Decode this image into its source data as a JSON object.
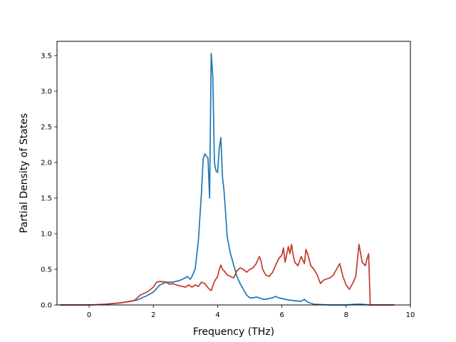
{
  "chart_data": {
    "type": "line",
    "title": "",
    "xlabel": "Frequency (THz)",
    "ylabel": "Partial Density of States",
    "xlim": [
      -1.0,
      10.0
    ],
    "ylim": [
      0.0,
      3.7
    ],
    "xticks": [
      0,
      2,
      4,
      6,
      8,
      10
    ],
    "yticks": [
      0.0,
      0.5,
      1.0,
      1.5,
      2.0,
      2.5,
      3.0,
      3.5
    ],
    "grid": false,
    "legend": "none",
    "series": [
      {
        "color": "#1f77b4",
        "x": [
          -0.9,
          0.0,
          0.5,
          1.0,
          1.5,
          1.8,
          2.0,
          2.2,
          2.4,
          2.6,
          2.8,
          3.0,
          3.05,
          3.15,
          3.2,
          3.3,
          3.4,
          3.5,
          3.55,
          3.6,
          3.7,
          3.75,
          3.8,
          3.85,
          3.9,
          3.95,
          4.0,
          4.05,
          4.1,
          4.15,
          4.2,
          4.3,
          4.4,
          4.5,
          4.6,
          4.7,
          4.8,
          4.9,
          5.0,
          5.1,
          5.2,
          5.3,
          5.4,
          5.5,
          5.6,
          5.7,
          5.8,
          5.9,
          6.0,
          6.2,
          6.4,
          6.6,
          6.7,
          6.8,
          7.0,
          7.5,
          8.0,
          8.3,
          8.5,
          8.7,
          9.0,
          9.5
        ],
        "y": [
          0.0,
          0.0,
          0.01,
          0.03,
          0.07,
          0.13,
          0.18,
          0.28,
          0.32,
          0.32,
          0.34,
          0.38,
          0.4,
          0.36,
          0.4,
          0.5,
          0.9,
          1.6,
          2.05,
          2.12,
          2.06,
          1.5,
          3.53,
          3.2,
          2.0,
          1.88,
          1.86,
          2.2,
          2.35,
          1.8,
          1.6,
          0.95,
          0.72,
          0.56,
          0.4,
          0.3,
          0.22,
          0.14,
          0.1,
          0.1,
          0.11,
          0.1,
          0.08,
          0.08,
          0.09,
          0.1,
          0.12,
          0.1,
          0.09,
          0.07,
          0.06,
          0.05,
          0.08,
          0.04,
          0.01,
          0.0,
          0.0,
          0.01,
          0.01,
          0.0,
          0.0,
          0.0
        ]
      },
      {
        "color": "#c0392b",
        "x": [
          -0.9,
          0.0,
          0.5,
          1.0,
          1.4,
          1.5,
          1.6,
          1.8,
          2.0,
          2.1,
          2.2,
          2.4,
          2.5,
          2.6,
          2.8,
          3.0,
          3.1,
          3.2,
          3.3,
          3.4,
          3.5,
          3.6,
          3.7,
          3.8,
          3.9,
          4.0,
          4.05,
          4.1,
          4.15,
          4.2,
          4.3,
          4.4,
          4.5,
          4.6,
          4.7,
          4.8,
          4.9,
          5.0,
          5.1,
          5.2,
          5.3,
          5.35,
          5.4,
          5.5,
          5.6,
          5.7,
          5.8,
          5.9,
          6.0,
          6.05,
          6.1,
          6.2,
          6.25,
          6.3,
          6.35,
          6.4,
          6.5,
          6.6,
          6.7,
          6.75,
          6.8,
          6.9,
          7.0,
          7.1,
          7.2,
          7.3,
          7.5,
          7.6,
          7.7,
          7.8,
          7.9,
          8.0,
          8.1,
          8.2,
          8.3,
          8.4,
          8.5,
          8.6,
          8.65,
          8.7,
          8.75,
          9.0,
          9.5
        ],
        "y": [
          0.0,
          0.0,
          0.01,
          0.03,
          0.06,
          0.1,
          0.14,
          0.18,
          0.25,
          0.32,
          0.33,
          0.32,
          0.29,
          0.3,
          0.27,
          0.25,
          0.28,
          0.25,
          0.28,
          0.26,
          0.32,
          0.3,
          0.24,
          0.2,
          0.33,
          0.4,
          0.5,
          0.56,
          0.5,
          0.48,
          0.42,
          0.4,
          0.38,
          0.48,
          0.52,
          0.5,
          0.46,
          0.5,
          0.52,
          0.58,
          0.68,
          0.62,
          0.5,
          0.42,
          0.4,
          0.45,
          0.55,
          0.65,
          0.7,
          0.8,
          0.6,
          0.82,
          0.72,
          0.85,
          0.7,
          0.6,
          0.55,
          0.68,
          0.58,
          0.78,
          0.72,
          0.55,
          0.5,
          0.42,
          0.3,
          0.35,
          0.38,
          0.42,
          0.5,
          0.58,
          0.4,
          0.28,
          0.22,
          0.3,
          0.4,
          0.85,
          0.6,
          0.55,
          0.65,
          0.72,
          0.0,
          0.0,
          0.0
        ]
      }
    ]
  }
}
